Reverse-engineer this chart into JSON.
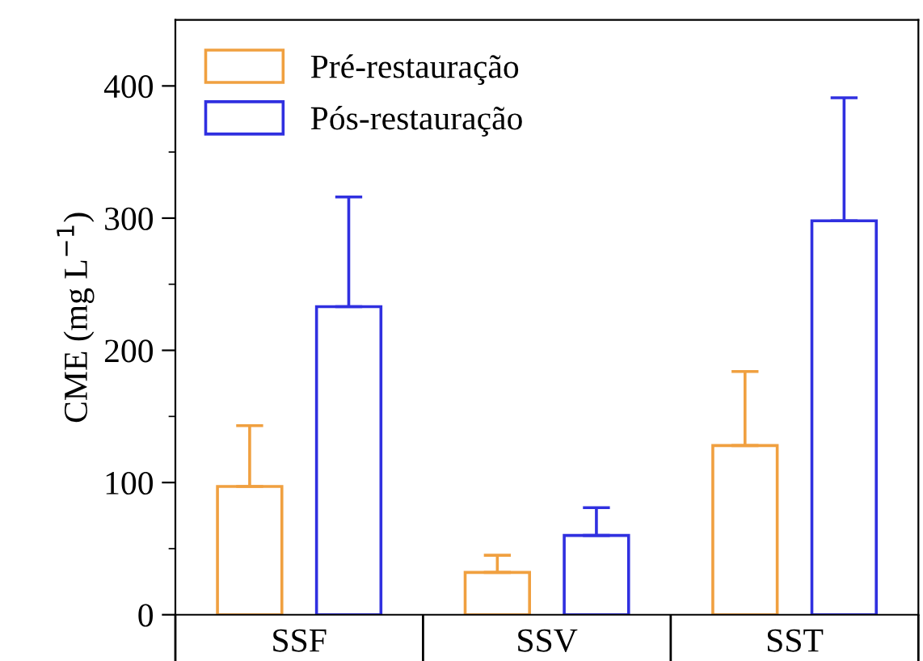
{
  "chart_data": {
    "type": "bar",
    "ylabel": "CME (mg L$^{−1}$)",
    "categories": [
      "SSF",
      "SSV",
      "SST"
    ],
    "series": [
      {
        "name": "Pré-restauração",
        "color": "#f0a040",
        "values": [
          97,
          32,
          128
        ],
        "errors": [
          [
            97,
            143
          ],
          [
            32,
            45
          ],
          [
            128,
            184
          ]
        ]
      },
      {
        "name": "Pós-restauração",
        "color": "#3030e0",
        "values": [
          233,
          60,
          298
        ],
        "errors": [
          [
            233,
            316
          ],
          [
            60,
            81
          ],
          [
            298,
            391
          ]
        ]
      }
    ],
    "ylim": [
      0,
      450
    ],
    "yticks": [
      0,
      100,
      200,
      300,
      400
    ],
    "legend": "top left",
    "grid": false
  }
}
